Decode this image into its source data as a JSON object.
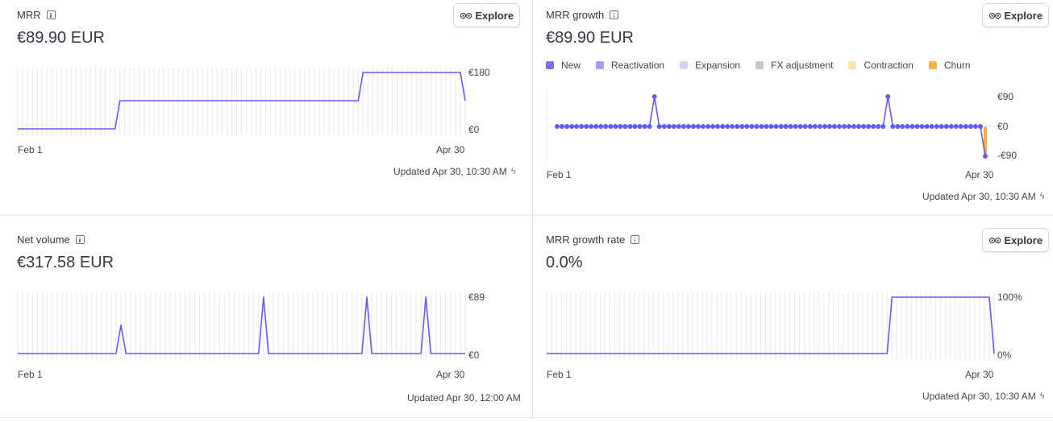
{
  "colors": {
    "accent": "#635bff",
    "churn": "#f5b53d",
    "grid": "#e8eaee"
  },
  "mrr": {
    "title": "MRR",
    "value": "€89.90 EUR",
    "explore": "Explore",
    "x_start": "Feb 1",
    "x_end": "Apr 30",
    "y_top": "€180",
    "y_bottom": "€0",
    "updated": "Updated Apr 30, 10:30 AM"
  },
  "mrr_growth": {
    "title": "MRR growth",
    "value": "€89.90 EUR",
    "explore": "Explore",
    "legend": [
      {
        "label": "New",
        "color": "#7c70f4"
      },
      {
        "label": "Reactivation",
        "color": "#a99bf7"
      },
      {
        "label": "Expansion",
        "color": "#d7cffc"
      },
      {
        "label": "FX adjustment",
        "color": "#c4c9d1"
      },
      {
        "label": "Contraction",
        "color": "#fbe6b1"
      },
      {
        "label": "Churn",
        "color": "#f5b53d"
      }
    ],
    "x_start": "Feb 1",
    "x_end": "Apr 30",
    "y_top": "€90",
    "y_mid": "€0",
    "y_bottom": "-€90",
    "updated": "Updated Apr 30, 10:30 AM"
  },
  "net_volume": {
    "title": "Net volume",
    "value": "€317.58 EUR",
    "x_start": "Feb 1",
    "x_end": "Apr 30",
    "y_top": "€89",
    "y_bottom": "€0",
    "updated": "Updated Apr 30, 12:00 AM"
  },
  "mrr_growth_rate": {
    "title": "MRR growth rate",
    "value": "0.0%",
    "explore": "Explore",
    "x_start": "Feb 1",
    "x_end": "Apr 30",
    "y_top": "100%",
    "y_bottom": "0%",
    "updated": "Updated Apr 30, 10:30 AM"
  },
  "chart_data": [
    {
      "type": "line",
      "title": "MRR",
      "xlabel": "",
      "ylabel": "",
      "x": [
        "Feb 1",
        "Apr 30"
      ],
      "ylim": [
        0,
        180
      ],
      "series": [
        {
          "name": "MRR",
          "points": [
            [
              0,
              0
            ],
            [
              20,
              0
            ],
            [
              21,
              90
            ],
            [
              70,
              90
            ],
            [
              71,
              180
            ],
            [
              91,
              180
            ],
            [
              92,
              90
            ]
          ]
        }
      ]
    },
    {
      "type": "line",
      "title": "MRR growth",
      "ylim": [
        -90,
        90
      ],
      "series": [
        {
          "name": "MRR growth",
          "count": 89,
          "spikes": [
            [
              20,
              90
            ],
            [
              68,
              90
            ],
            [
              88,
              -90
            ]
          ],
          "churn_bar_index": 88,
          "churn_bar_value": -90
        }
      ]
    },
    {
      "type": "line",
      "title": "Net volume",
      "ylim": [
        0,
        89
      ],
      "series": [
        {
          "name": "Net volume",
          "points": [
            [
              0,
              0
            ],
            [
              20,
              0
            ],
            [
              21,
              45
            ],
            [
              22,
              0
            ],
            [
              49,
              0
            ],
            [
              50,
              89
            ],
            [
              51,
              0
            ],
            [
              70,
              0
            ],
            [
              71,
              89
            ],
            [
              72,
              0
            ],
            [
              82,
              0
            ],
            [
              83,
              89
            ],
            [
              84,
              0
            ],
            [
              91,
              0
            ]
          ]
        }
      ]
    },
    {
      "type": "line",
      "title": "MRR growth rate",
      "ylim": [
        0,
        100
      ],
      "series": [
        {
          "name": "MRR growth rate",
          "points": [
            [
              0,
              0
            ],
            [
              70,
              0
            ],
            [
              71,
              100
            ],
            [
              91,
              100
            ],
            [
              92,
              0
            ]
          ]
        }
      ]
    }
  ]
}
